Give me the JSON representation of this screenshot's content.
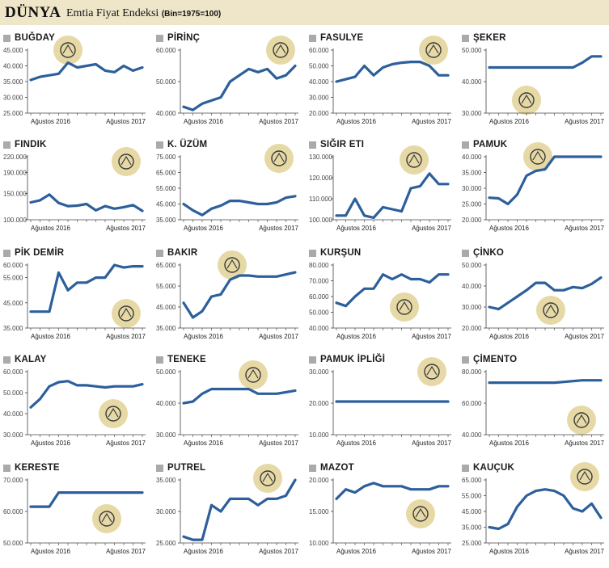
{
  "header": {
    "brand": "DÜNYA",
    "title": "Emtia Fiyat Endeksi",
    "subtitle": "(Bin=1975=100)"
  },
  "colors": {
    "line": "#2c5f9b",
    "header_bg": "#efe6c9",
    "icon_bg": "#e6d9a6",
    "square": "#aaaaaa"
  },
  "x_labels": [
    "Ağustos 2016",
    "Ağustos 2017"
  ],
  "panels": [
    {
      "name": "BUĞDAY",
      "icon": "wheat-icon",
      "ticks": [
        "45.000",
        "40.000",
        "35.000",
        "30.000",
        "25.000"
      ],
      "tick_values": [
        45,
        40,
        35,
        30,
        25
      ],
      "values": [
        35.5,
        36.5,
        37,
        37.5,
        41,
        39.5,
        40,
        40.5,
        38.5,
        38,
        40,
        38.5,
        39.5
      ]
    },
    {
      "name": "PİRİNÇ",
      "icon": "rice-icon",
      "ticks": [
        "60.000",
        "50.000",
        "40.000"
      ],
      "tick_values": [
        60,
        50,
        40
      ],
      "values": [
        42,
        41,
        43,
        44,
        45,
        50,
        52,
        54,
        53,
        54,
        51,
        52,
        55
      ]
    },
    {
      "name": "FASULYE",
      "icon": "bean-icon",
      "ticks": [
        "60.000",
        "50.000",
        "40.000",
        "30.000",
        "20.000"
      ],
      "tick_values": [
        60,
        50,
        40,
        30,
        20
      ],
      "values": [
        40,
        41.5,
        43,
        50,
        44,
        49,
        51,
        52,
        52.5,
        52.5,
        50,
        44,
        44
      ]
    },
    {
      "name": "ŞEKER",
      "icon": "sugar-icon",
      "ticks": [
        "50.000",
        "40.000",
        "30.000"
      ],
      "tick_values": [
        50,
        40,
        30
      ],
      "values": [
        44.5,
        44.5,
        44.5,
        44.5,
        44.5,
        44.5,
        44.5,
        44.5,
        44.5,
        44.5,
        46,
        48,
        48
      ]
    },
    {
      "name": "FINDIK",
      "icon": "hazelnut-icon",
      "ticks": [
        "220.000",
        "190.000",
        "150.000",
        "100.000"
      ],
      "tick_values": [
        220,
        190,
        150,
        100
      ],
      "values": [
        133,
        137,
        148,
        132,
        126,
        127,
        130,
        118,
        126,
        121,
        124,
        128,
        117
      ]
    },
    {
      "name": "K. ÜZÜM",
      "icon": "grape-icon",
      "ticks": [
        "75.000",
        "65.000",
        "55.000",
        "45.000",
        "35.000"
      ],
      "tick_values": [
        75,
        65,
        55,
        45,
        35
      ],
      "values": [
        45,
        41,
        38,
        42,
        44,
        47,
        47,
        46,
        45,
        45,
        46,
        49,
        50
      ]
    },
    {
      "name": "SIĞIR ETI",
      "icon": "meat-icon",
      "ticks": [
        "130.000",
        "120.000",
        "110.000",
        "100.000"
      ],
      "tick_values": [
        130,
        120,
        110,
        100
      ],
      "values": [
        102,
        102,
        110,
        102,
        101,
        106,
        105,
        104,
        115,
        116,
        122,
        117,
        117
      ]
    },
    {
      "name": "PAMUK",
      "icon": "cotton-icon",
      "ticks": [
        "40.000",
        "35.000",
        "30.000",
        "25.000",
        "20.000"
      ],
      "tick_values": [
        40,
        35,
        30,
        25,
        20
      ],
      "values": [
        27,
        26.8,
        25,
        28,
        34,
        35.5,
        36,
        40,
        41,
        41,
        41,
        41.2,
        41
      ]
    },
    {
      "name": "PİK DEMİR",
      "icon": "mine-cart-icon",
      "ticks": [
        "60.000",
        "55.000",
        "45.000",
        "35.000"
      ],
      "tick_values": [
        60,
        55,
        45,
        35
      ],
      "values": [
        41.5,
        41.5,
        41.5,
        57,
        50,
        53,
        53,
        55,
        55,
        60,
        59,
        59.5,
        59.5
      ]
    },
    {
      "name": "BAKIR",
      "icon": "pickaxe-icon",
      "ticks": [
        "65.000",
        "55.000",
        "45.000",
        "35.000"
      ],
      "tick_values": [
        65,
        55,
        45,
        35
      ],
      "values": [
        47,
        40,
        43,
        50,
        51,
        58,
        60,
        60,
        59.5,
        59.5,
        59.5,
        60.5,
        61.5
      ]
    },
    {
      "name": "KURŞUN",
      "icon": "hammer-icon",
      "ticks": [
        "80.000",
        "70.000",
        "60.000",
        "50.000",
        "40.000"
      ],
      "tick_values": [
        80,
        70,
        60,
        50,
        40
      ],
      "values": [
        56,
        54,
        60,
        65,
        65,
        74,
        71,
        74,
        71,
        71,
        69,
        74,
        74
      ]
    },
    {
      "name": "ÇİNKO",
      "icon": "shovel-icon",
      "ticks": [
        "50.000",
        "40.000",
        "30.000",
        "20.000"
      ],
      "tick_values": [
        50,
        40,
        30,
        20
      ],
      "values": [
        30,
        29,
        32,
        35,
        38,
        41.5,
        41.5,
        38,
        38,
        39.5,
        39,
        41,
        44
      ]
    },
    {
      "name": "KALAY",
      "icon": "miner-icon",
      "ticks": [
        "60.000",
        "50.000",
        "40.000",
        "30.000"
      ],
      "tick_values": [
        60,
        50,
        40,
        30
      ],
      "values": [
        43,
        47,
        53,
        55,
        55.5,
        53.5,
        53.5,
        53,
        52.5,
        53,
        53,
        53,
        54
      ]
    },
    {
      "name": "TENEKE",
      "icon": "tin-icon",
      "ticks": [
        "50.000",
        "40.000",
        "30.000"
      ],
      "tick_values": [
        50,
        40,
        30
      ],
      "values": [
        40,
        40.5,
        43,
        44.5,
        44.5,
        44.5,
        44.5,
        44.5,
        43,
        43,
        43,
        43.5,
        44
      ]
    },
    {
      "name": "PAMUK İPLİĞİ",
      "icon": "yarn-icon",
      "ticks": [
        "30.000",
        "20.000",
        "10.000"
      ],
      "tick_values": [
        30,
        20,
        10
      ],
      "values": [
        20.5,
        20.5,
        20.5,
        20.5,
        20.5,
        20.5,
        20.5,
        20.5,
        20.5,
        20.5,
        20.5,
        20.5,
        20.5
      ]
    },
    {
      "name": "ÇİMENTO",
      "icon": "cement-truck-icon",
      "ticks": [
        "80.000",
        "60.000",
        "40.000"
      ],
      "tick_values": [
        80,
        60,
        40
      ],
      "values": [
        73,
        73,
        73,
        73,
        73,
        73,
        73,
        73,
        73.5,
        74,
        74.5,
        74.5,
        74.5
      ]
    },
    {
      "name": "KERESTE",
      "icon": "tree-icon",
      "ticks": [
        "70.000",
        "60.000",
        "50.000"
      ],
      "tick_values": [
        70,
        60,
        50
      ],
      "values": [
        61.5,
        61.5,
        61.5,
        66,
        66,
        66,
        66,
        66,
        66,
        66,
        66,
        66,
        66
      ]
    },
    {
      "name": "PUTREL",
      "icon": "girder-icon",
      "ticks": [
        "35.000",
        "30.000",
        "25.000"
      ],
      "tick_values": [
        35,
        30,
        25
      ],
      "values": [
        26,
        25.5,
        25.5,
        31,
        30,
        32,
        32,
        32,
        31,
        32,
        32,
        32.5,
        36
      ]
    },
    {
      "name": "MAZOT",
      "icon": "jerrycan-icon",
      "ticks": [
        "20.000",
        "15.000",
        "10.000"
      ],
      "tick_values": [
        20,
        15,
        10
      ],
      "values": [
        17,
        18.5,
        18,
        19,
        19.5,
        19,
        19,
        19,
        18.5,
        18.5,
        18.5,
        19,
        19
      ]
    },
    {
      "name": "KAUÇUK",
      "icon": "tire-icon",
      "ticks": [
        "65.000",
        "55.000",
        "45.000",
        "35.000",
        "25.000"
      ],
      "tick_values": [
        65,
        55,
        45,
        35,
        25
      ],
      "values": [
        35,
        34,
        37,
        48,
        55,
        58,
        59,
        58,
        55,
        47,
        45,
        50,
        41
      ]
    }
  ]
}
